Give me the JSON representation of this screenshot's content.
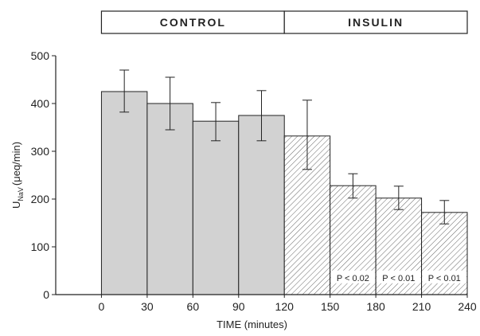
{
  "chart_data": {
    "type": "bar",
    "xlabel": "TIME (minutes)",
    "ylabel": "U",
    "ylabel_sub": "NaV",
    "ylabel_unit": "(μeq/min)",
    "x_ticks": [
      0,
      30,
      60,
      90,
      120,
      150,
      180,
      210,
      240
    ],
    "x_tick_labels": [
      "0",
      "30",
      "60",
      "90",
      "120",
      "150",
      "180",
      "210",
      "240"
    ],
    "y_ticks": [
      0,
      100,
      200,
      300,
      400,
      500
    ],
    "y_tick_labels": [
      "0",
      "100",
      "200",
      "300",
      "400",
      "500"
    ],
    "xlim": [
      -30,
      240
    ],
    "ylim": [
      0,
      500
    ],
    "periods": [
      {
        "label": "CONTROL",
        "x_start": 0,
        "x_end": 120
      },
      {
        "label": "INSULIN",
        "x_start": 120,
        "x_end": 240
      }
    ],
    "bars": [
      {
        "x0": 0,
        "x1": 30,
        "value": 425,
        "err_low": 382,
        "err_high": 470,
        "period": "CONTROL",
        "annotation": ""
      },
      {
        "x0": 30,
        "x1": 60,
        "value": 400,
        "err_low": 345,
        "err_high": 455,
        "period": "CONTROL",
        "annotation": ""
      },
      {
        "x0": 60,
        "x1": 90,
        "value": 363,
        "err_low": 322,
        "err_high": 402,
        "period": "CONTROL",
        "annotation": ""
      },
      {
        "x0": 90,
        "x1": 120,
        "value": 375,
        "err_low": 322,
        "err_high": 427,
        "period": "CONTROL",
        "annotation": ""
      },
      {
        "x0": 120,
        "x1": 150,
        "value": 332,
        "err_low": 262,
        "err_high": 407,
        "period": "INSULIN",
        "annotation": ""
      },
      {
        "x0": 150,
        "x1": 180,
        "value": 228,
        "err_low": 202,
        "err_high": 253,
        "period": "INSULIN",
        "annotation": "P < 0.02"
      },
      {
        "x0": 180,
        "x1": 210,
        "value": 202,
        "err_low": 178,
        "err_high": 227,
        "period": "INSULIN",
        "annotation": "P < 0.01"
      },
      {
        "x0": 210,
        "x1": 240,
        "value": 172,
        "err_low": 148,
        "err_high": 197,
        "period": "INSULIN",
        "annotation": "P <  0.01"
      }
    ],
    "colors": {
      "control_fill": "#d2d2d2",
      "insulin_hatch": "#666666",
      "ink": "#222222"
    }
  }
}
